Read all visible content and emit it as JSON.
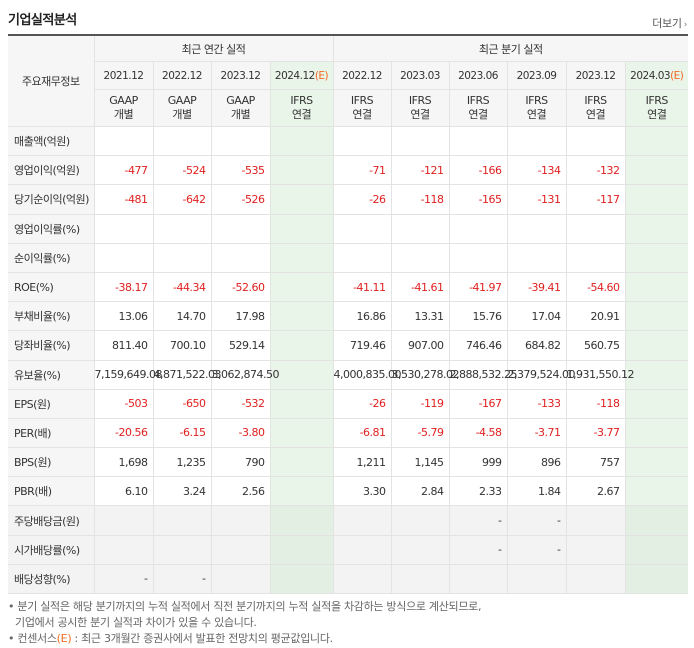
{
  "title": "기업실적분석",
  "more_label": "더보기",
  "headers": {
    "row_label": "주요재무정보",
    "annual_group": "최근 연간 실적",
    "quarter_group": "최근 분기 실적",
    "periods": [
      "2021.12",
      "2022.12",
      "2023.12",
      "2024.12(E)",
      "2022.12",
      "2023.03",
      "2023.06",
      "2023.09",
      "2023.12",
      "2024.03(E)"
    ],
    "standards": [
      [
        "GAAP",
        "개별"
      ],
      [
        "GAAP",
        "개별"
      ],
      [
        "GAAP",
        "개별"
      ],
      [
        "IFRS",
        "연결"
      ],
      [
        "IFRS",
        "연결"
      ],
      [
        "IFRS",
        "연결"
      ],
      [
        "IFRS",
        "연결"
      ],
      [
        "IFRS",
        "연결"
      ],
      [
        "IFRS",
        "연결"
      ],
      [
        "IFRS",
        "연결"
      ]
    ]
  },
  "rows": [
    {
      "label": "매출액(억원)",
      "values": [
        "",
        "",
        "",
        "",
        "",
        "",
        "",
        "",
        "",
        ""
      ]
    },
    {
      "label": "영업이익(억원)",
      "values": [
        "-477",
        "-524",
        "-535",
        "",
        "-71",
        "-121",
        "-166",
        "-134",
        "-132",
        ""
      ]
    },
    {
      "label": "당기순이익(억원)",
      "values": [
        "-481",
        "-642",
        "-526",
        "",
        "-26",
        "-118",
        "-165",
        "-131",
        "-117",
        ""
      ]
    },
    {
      "label": "영업이익률(%)",
      "values": [
        "",
        "",
        "",
        "",
        "",
        "",
        "",
        "",
        "",
        ""
      ]
    },
    {
      "label": "순이익률(%)",
      "values": [
        "",
        "",
        "",
        "",
        "",
        "",
        "",
        "",
        "",
        ""
      ]
    },
    {
      "label": "ROE(%)",
      "values": [
        "-38.17",
        "-44.34",
        "-52.60",
        "",
        "-41.11",
        "-41.61",
        "-41.97",
        "-39.41",
        "-54.60",
        ""
      ]
    },
    {
      "label": "부채비율(%)",
      "values": [
        "13.06",
        "14.70",
        "17.98",
        "",
        "16.86",
        "13.31",
        "15.76",
        "17.04",
        "20.91",
        ""
      ]
    },
    {
      "label": "당좌비율(%)",
      "values": [
        "811.40",
        "700.10",
        "529.14",
        "",
        "719.46",
        "907.00",
        "746.46",
        "684.82",
        "560.75",
        ""
      ]
    },
    {
      "label": "유보율(%)",
      "values": [
        "7,159,649.08",
        "4,871,522.03",
        "3,062,874.50",
        "",
        "4,000,835.00",
        "3,530,278.02",
        "2,888,532.25",
        "2,379,524.00",
        "1,931,550.12",
        ""
      ]
    },
    {
      "label": "EPS(원)",
      "values": [
        "-503",
        "-650",
        "-532",
        "",
        "-26",
        "-119",
        "-167",
        "-133",
        "-118",
        ""
      ]
    },
    {
      "label": "PER(배)",
      "values": [
        "-20.56",
        "-6.15",
        "-3.80",
        "",
        "-6.81",
        "-5.79",
        "-4.58",
        "-3.71",
        "-3.77",
        ""
      ]
    },
    {
      "label": "BPS(원)",
      "values": [
        "1,698",
        "1,235",
        "790",
        "",
        "1,211",
        "1,145",
        "999",
        "896",
        "757",
        ""
      ]
    },
    {
      "label": "PBR(배)",
      "values": [
        "6.10",
        "3.24",
        "2.56",
        "",
        "3.30",
        "2.84",
        "2.33",
        "1.84",
        "2.67",
        ""
      ]
    },
    {
      "label": "주당배당금(원)",
      "values": [
        "",
        "",
        "",
        "",
        "",
        "",
        "-",
        "-",
        "",
        ""
      ]
    },
    {
      "label": "시가배당률(%)",
      "values": [
        "",
        "",
        "",
        "",
        "",
        "",
        "-",
        "-",
        "",
        ""
      ]
    },
    {
      "label": "배당성향(%)",
      "values": [
        "-",
        "-",
        "",
        "",
        "",
        "",
        "",
        "",
        "",
        ""
      ]
    }
  ],
  "grey_rows": [
    13,
    14,
    15
  ],
  "notes": [
    "분기 실적은 해당 분기까지의 누적 실적에서 직전 분기까지의 누적 실적을 차감하는 방식으로 계산되므로,",
    "기업에서 공시한 분기 실적과 차이가 있을 수 있습니다.",
    "컨센서스(E) : 최근 3개월간 증권사에서 발표한 전망치의 평균값입니다."
  ],
  "colors": {
    "negative": "#e02020",
    "ifrs": "#f06b23",
    "estimate_bg": "#eaf5ea"
  }
}
